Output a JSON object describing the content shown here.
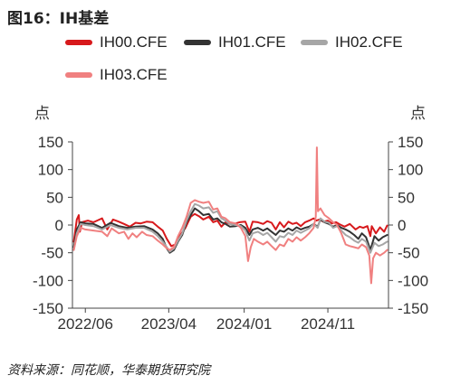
{
  "figure_title": "图16：IH基差",
  "source_note": "资料来源：同花顺，华泰期货研究院",
  "chart_data": {
    "type": "line",
    "y_unit_left": "点",
    "y_unit_right": "点",
    "ylim": [
      -150,
      150
    ],
    "yticks": [
      150,
      100,
      50,
      0,
      -50,
      -100,
      -150
    ],
    "xlim": [
      "2022-04-15",
      "2025-06-10"
    ],
    "xticks": [
      {
        "date": "2022-06-01",
        "label": "2022/06"
      },
      {
        "date": "2023-04-01",
        "label": "2023/04"
      },
      {
        "date": "2024-01-01",
        "label": "2024/01"
      },
      {
        "date": "2024-11-01",
        "label": "2024/11"
      }
    ],
    "legend_position": "top",
    "grid": false,
    "series": [
      {
        "name": "IH00.CFE",
        "color": "#d7191c",
        "width": 2,
        "points": [
          [
            "2022-04-20",
            -30
          ],
          [
            "2022-05-01",
            10
          ],
          [
            "2022-05-08",
            18
          ],
          [
            "2022-05-12",
            -12
          ],
          [
            "2022-05-20",
            5
          ],
          [
            "2022-06-10",
            8
          ],
          [
            "2022-07-01",
            5
          ],
          [
            "2022-08-01",
            12
          ],
          [
            "2022-08-20",
            -8
          ],
          [
            "2022-09-10",
            10
          ],
          [
            "2022-10-01",
            6
          ],
          [
            "2022-10-20",
            2
          ],
          [
            "2022-11-10",
            -3
          ],
          [
            "2022-12-01",
            4
          ],
          [
            "2022-12-20",
            3
          ],
          [
            "2023-01-10",
            6
          ],
          [
            "2023-02-01",
            5
          ],
          [
            "2023-02-20",
            -3
          ],
          [
            "2023-03-10",
            -10
          ],
          [
            "2023-03-25",
            -25
          ],
          [
            "2023-04-10",
            -38
          ],
          [
            "2023-04-25",
            -35
          ],
          [
            "2023-05-10",
            -20
          ],
          [
            "2023-06-01",
            -5
          ],
          [
            "2023-06-20",
            15
          ],
          [
            "2023-07-05",
            20
          ],
          [
            "2023-07-20",
            16
          ],
          [
            "2023-08-05",
            10
          ],
          [
            "2023-08-25",
            15
          ],
          [
            "2023-09-10",
            5
          ],
          [
            "2023-09-25",
            8
          ],
          [
            "2023-10-10",
            -3
          ],
          [
            "2023-10-25",
            5
          ],
          [
            "2023-11-10",
            2
          ],
          [
            "2023-12-01",
            3
          ],
          [
            "2023-12-15",
            5
          ],
          [
            "2024-01-05",
            6
          ],
          [
            "2024-01-20",
            -12
          ],
          [
            "2024-02-01",
            6
          ],
          [
            "2024-02-20",
            5
          ],
          [
            "2024-03-10",
            2
          ],
          [
            "2024-03-25",
            7
          ],
          [
            "2024-04-10",
            4
          ],
          [
            "2024-04-25",
            -8
          ],
          [
            "2024-05-10",
            5
          ],
          [
            "2024-05-25",
            -4
          ],
          [
            "2024-06-10",
            6
          ],
          [
            "2024-06-25",
            2
          ],
          [
            "2024-07-10",
            4
          ],
          [
            "2024-07-25",
            -2
          ],
          [
            "2024-08-10",
            5
          ],
          [
            "2024-08-25",
            8
          ],
          [
            "2024-09-10",
            12
          ],
          [
            "2024-09-20",
            8
          ],
          [
            "2024-10-01",
            10
          ],
          [
            "2024-10-15",
            6
          ],
          [
            "2024-11-01",
            8
          ],
          [
            "2024-11-15",
            3
          ],
          [
            "2024-12-01",
            5
          ],
          [
            "2024-12-15",
            1
          ],
          [
            "2025-01-01",
            -3
          ],
          [
            "2025-01-20",
            2
          ],
          [
            "2025-02-10",
            -8
          ],
          [
            "2025-02-25",
            -3
          ],
          [
            "2025-03-10",
            -5
          ],
          [
            "2025-03-25",
            -2
          ],
          [
            "2025-04-05",
            -20
          ],
          [
            "2025-04-10",
            -2
          ],
          [
            "2025-04-25",
            -15
          ],
          [
            "2025-05-10",
            -4
          ],
          [
            "2025-05-25",
            -12
          ],
          [
            "2025-06-05",
            -1
          ]
        ]
      },
      {
        "name": "IH01.CFE",
        "color": "#333333",
        "width": 2,
        "points": [
          [
            "2022-04-20",
            -40
          ],
          [
            "2022-05-01",
            -8
          ],
          [
            "2022-05-15",
            5
          ],
          [
            "2022-06-01",
            3
          ],
          [
            "2022-07-01",
            2
          ],
          [
            "2022-08-01",
            -5
          ],
          [
            "2022-09-01",
            4
          ],
          [
            "2022-10-01",
            -2
          ],
          [
            "2022-11-01",
            -5
          ],
          [
            "2022-12-01",
            -3
          ],
          [
            "2023-01-01",
            -2
          ],
          [
            "2023-02-01",
            -8
          ],
          [
            "2023-02-20",
            -15
          ],
          [
            "2023-03-10",
            -25
          ],
          [
            "2023-03-25",
            -42
          ],
          [
            "2023-04-05",
            -50
          ],
          [
            "2023-04-20",
            -45
          ],
          [
            "2023-05-05",
            -30
          ],
          [
            "2023-05-20",
            -18
          ],
          [
            "2023-06-05",
            5
          ],
          [
            "2023-06-20",
            18
          ],
          [
            "2023-07-05",
            30
          ],
          [
            "2023-07-20",
            25
          ],
          [
            "2023-08-05",
            18
          ],
          [
            "2023-08-25",
            20
          ],
          [
            "2023-09-10",
            10
          ],
          [
            "2023-09-25",
            12
          ],
          [
            "2023-10-10",
            5
          ],
          [
            "2023-10-25",
            2
          ],
          [
            "2023-11-10",
            -3
          ],
          [
            "2023-12-01",
            -2
          ],
          [
            "2023-12-20",
            0
          ],
          [
            "2024-01-05",
            -5
          ],
          [
            "2024-01-20",
            -18
          ],
          [
            "2024-02-01",
            -8
          ],
          [
            "2024-02-20",
            -5
          ],
          [
            "2024-03-10",
            -10
          ],
          [
            "2024-03-25",
            -6
          ],
          [
            "2024-04-10",
            -12
          ],
          [
            "2024-04-25",
            -18
          ],
          [
            "2024-05-10",
            -10
          ],
          [
            "2024-05-25",
            -12
          ],
          [
            "2024-06-10",
            -6
          ],
          [
            "2024-06-25",
            -10
          ],
          [
            "2024-07-10",
            -4
          ],
          [
            "2024-07-25",
            -8
          ],
          [
            "2024-08-10",
            -5
          ],
          [
            "2024-08-25",
            -3
          ],
          [
            "2024-09-10",
            2
          ],
          [
            "2024-09-25",
            -3
          ],
          [
            "2024-10-05",
            10
          ],
          [
            "2024-10-20",
            5
          ],
          [
            "2024-11-05",
            2
          ],
          [
            "2024-11-20",
            -3
          ],
          [
            "2024-12-05",
            0
          ],
          [
            "2024-12-20",
            -5
          ],
          [
            "2025-01-05",
            -8
          ],
          [
            "2025-01-20",
            -12
          ],
          [
            "2025-02-05",
            -18
          ],
          [
            "2025-02-20",
            -25
          ],
          [
            "2025-03-05",
            -15
          ],
          [
            "2025-03-20",
            -22
          ],
          [
            "2025-04-05",
            -45
          ],
          [
            "2025-04-20",
            -20
          ],
          [
            "2025-05-05",
            -28
          ],
          [
            "2025-05-20",
            -22
          ],
          [
            "2025-06-05",
            -18
          ]
        ]
      },
      {
        "name": "IH02.CFE",
        "color": "#a6a6a6",
        "width": 2,
        "points": [
          [
            "2022-04-20",
            -45
          ],
          [
            "2022-05-01",
            -15
          ],
          [
            "2022-05-15",
            2
          ],
          [
            "2022-06-01",
            0
          ],
          [
            "2022-07-01",
            -2
          ],
          [
            "2022-08-01",
            -8
          ],
          [
            "2022-09-01",
            0
          ],
          [
            "2022-10-01",
            -5
          ],
          [
            "2022-11-01",
            -8
          ],
          [
            "2022-12-01",
            -5
          ],
          [
            "2023-01-01",
            -5
          ],
          [
            "2023-02-01",
            -12
          ],
          [
            "2023-02-20",
            -20
          ],
          [
            "2023-03-10",
            -30
          ],
          [
            "2023-03-25",
            -40
          ],
          [
            "2023-04-05",
            -48
          ],
          [
            "2023-04-20",
            -42
          ],
          [
            "2023-05-05",
            -28
          ],
          [
            "2023-05-20",
            -15
          ],
          [
            "2023-06-05",
            8
          ],
          [
            "2023-06-20",
            25
          ],
          [
            "2023-07-05",
            38
          ],
          [
            "2023-07-20",
            35
          ],
          [
            "2023-08-05",
            30
          ],
          [
            "2023-08-25",
            32
          ],
          [
            "2023-09-10",
            22
          ],
          [
            "2023-09-25",
            25
          ],
          [
            "2023-10-10",
            12
          ],
          [
            "2023-10-25",
            8
          ],
          [
            "2023-11-10",
            2
          ],
          [
            "2023-12-01",
            0
          ],
          [
            "2023-12-20",
            -2
          ],
          [
            "2024-01-05",
            -10
          ],
          [
            "2024-01-20",
            -28
          ],
          [
            "2024-02-01",
            -15
          ],
          [
            "2024-02-20",
            -12
          ],
          [
            "2024-03-10",
            -18
          ],
          [
            "2024-03-25",
            -14
          ],
          [
            "2024-04-10",
            -22
          ],
          [
            "2024-04-25",
            -30
          ],
          [
            "2024-05-10",
            -20
          ],
          [
            "2024-05-25",
            -22
          ],
          [
            "2024-06-10",
            -14
          ],
          [
            "2024-06-25",
            -18
          ],
          [
            "2024-07-10",
            -10
          ],
          [
            "2024-07-25",
            -14
          ],
          [
            "2024-08-10",
            -10
          ],
          [
            "2024-08-25",
            -6
          ],
          [
            "2024-09-10",
            2
          ],
          [
            "2024-09-25",
            -5
          ],
          [
            "2024-10-05",
            12
          ],
          [
            "2024-10-20",
            6
          ],
          [
            "2024-11-05",
            4
          ],
          [
            "2024-11-20",
            -5
          ],
          [
            "2024-12-05",
            -2
          ],
          [
            "2024-12-20",
            -10
          ],
          [
            "2025-01-05",
            -18
          ],
          [
            "2025-01-20",
            -22
          ],
          [
            "2025-02-05",
            -28
          ],
          [
            "2025-02-20",
            -32
          ],
          [
            "2025-03-05",
            -25
          ],
          [
            "2025-03-20",
            -30
          ],
          [
            "2025-04-05",
            -50
          ],
          [
            "2025-04-20",
            -32
          ],
          [
            "2025-05-05",
            -38
          ],
          [
            "2025-05-20",
            -35
          ],
          [
            "2025-06-05",
            -30
          ]
        ]
      },
      {
        "name": "IH03.CFE",
        "color": "#f08080",
        "width": 2,
        "points": [
          [
            "2022-04-20",
            -45
          ],
          [
            "2022-05-01",
            -20
          ],
          [
            "2022-05-15",
            -5
          ],
          [
            "2022-06-01",
            -8
          ],
          [
            "2022-07-01",
            -10
          ],
          [
            "2022-08-01",
            -12
          ],
          [
            "2022-08-20",
            -20
          ],
          [
            "2022-09-05",
            -6
          ],
          [
            "2022-10-01",
            -15
          ],
          [
            "2022-10-20",
            -12
          ],
          [
            "2022-11-05",
            -25
          ],
          [
            "2022-11-20",
            -15
          ],
          [
            "2022-12-05",
            -22
          ],
          [
            "2022-12-25",
            -12
          ],
          [
            "2023-01-10",
            -18
          ],
          [
            "2023-02-01",
            -20
          ],
          [
            "2023-02-20",
            -28
          ],
          [
            "2023-03-10",
            -35
          ],
          [
            "2023-03-25",
            -42
          ],
          [
            "2023-04-05",
            -45
          ],
          [
            "2023-04-20",
            -40
          ],
          [
            "2023-05-05",
            -20
          ],
          [
            "2023-05-20",
            -5
          ],
          [
            "2023-06-05",
            15
          ],
          [
            "2023-06-20",
            40
          ],
          [
            "2023-07-05",
            45
          ],
          [
            "2023-07-20",
            42
          ],
          [
            "2023-08-05",
            40
          ],
          [
            "2023-08-25",
            42
          ],
          [
            "2023-09-10",
            28
          ],
          [
            "2023-09-25",
            30
          ],
          [
            "2023-10-10",
            15
          ],
          [
            "2023-10-25",
            12
          ],
          [
            "2023-11-10",
            5
          ],
          [
            "2023-12-01",
            3
          ],
          [
            "2023-12-20",
            -5
          ],
          [
            "2024-01-05",
            -20
          ],
          [
            "2024-01-15",
            -65
          ],
          [
            "2024-01-25",
            -40
          ],
          [
            "2024-02-05",
            -25
          ],
          [
            "2024-02-20",
            -30
          ],
          [
            "2024-03-10",
            -35
          ],
          [
            "2024-03-25",
            -30
          ],
          [
            "2024-04-10",
            -38
          ],
          [
            "2024-04-25",
            -45
          ],
          [
            "2024-05-10",
            -35
          ],
          [
            "2024-05-25",
            -38
          ],
          [
            "2024-06-10",
            -25
          ],
          [
            "2024-06-25",
            -30
          ],
          [
            "2024-07-10",
            -22
          ],
          [
            "2024-07-25",
            -28
          ],
          [
            "2024-08-10",
            -22
          ],
          [
            "2024-08-25",
            -15
          ],
          [
            "2024-09-10",
            -5
          ],
          [
            "2024-09-18",
            15
          ],
          [
            "2024-09-22",
            140
          ],
          [
            "2024-09-26",
            25
          ],
          [
            "2024-10-05",
            30
          ],
          [
            "2024-10-20",
            18
          ],
          [
            "2024-11-05",
            12
          ],
          [
            "2024-11-20",
            5
          ],
          [
            "2024-12-05",
            0
          ],
          [
            "2024-12-20",
            -15
          ],
          [
            "2025-01-05",
            -35
          ],
          [
            "2025-01-20",
            -38
          ],
          [
            "2025-02-05",
            -40
          ],
          [
            "2025-02-20",
            -42
          ],
          [
            "2025-03-05",
            -35
          ],
          [
            "2025-03-20",
            -40
          ],
          [
            "2025-04-01",
            -55
          ],
          [
            "2025-04-08",
            -105
          ],
          [
            "2025-04-15",
            -60
          ],
          [
            "2025-04-25",
            -50
          ],
          [
            "2025-05-10",
            -55
          ],
          [
            "2025-05-25",
            -50
          ],
          [
            "2025-06-05",
            -45
          ]
        ]
      }
    ]
  }
}
